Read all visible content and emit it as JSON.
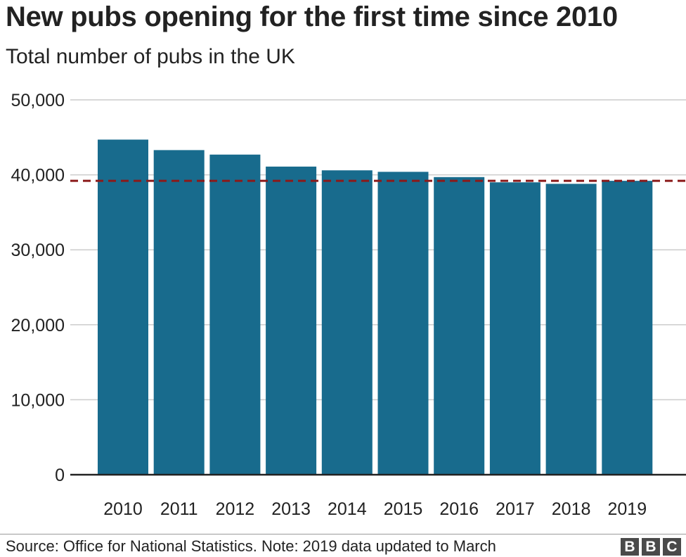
{
  "title": "New pubs opening for the first time since 2010",
  "subtitle": "Total number of pubs in the UK",
  "source": "Source: Office for National Statistics. Note: 2019 data updated to March",
  "logo_text": "BBC",
  "colors": {
    "bar": "#186b8d",
    "reference_line": "#8b1a1a",
    "grid": "#cccccc",
    "axis": "#222222"
  },
  "chart_data": {
    "type": "bar",
    "title": "New pubs opening for the first time since 2010",
    "subtitle": "Total number of pubs in the UK",
    "xlabel": "",
    "ylabel": "",
    "categories": [
      "2010",
      "2011",
      "2012",
      "2013",
      "2014",
      "2015",
      "2016",
      "2017",
      "2018",
      "2019"
    ],
    "values": [
      44700,
      43300,
      42700,
      41100,
      40600,
      40400,
      39700,
      39000,
      38800,
      39200
    ],
    "ylim": [
      0,
      50000
    ],
    "yticks": [
      0,
      10000,
      20000,
      30000,
      40000,
      50000
    ],
    "ytick_labels": [
      "0",
      "10,000",
      "20,000",
      "30,000",
      "40,000",
      "50,000"
    ],
    "reference_line": {
      "value": 39200,
      "style": "dashed"
    },
    "grid": true,
    "legend": "none"
  }
}
